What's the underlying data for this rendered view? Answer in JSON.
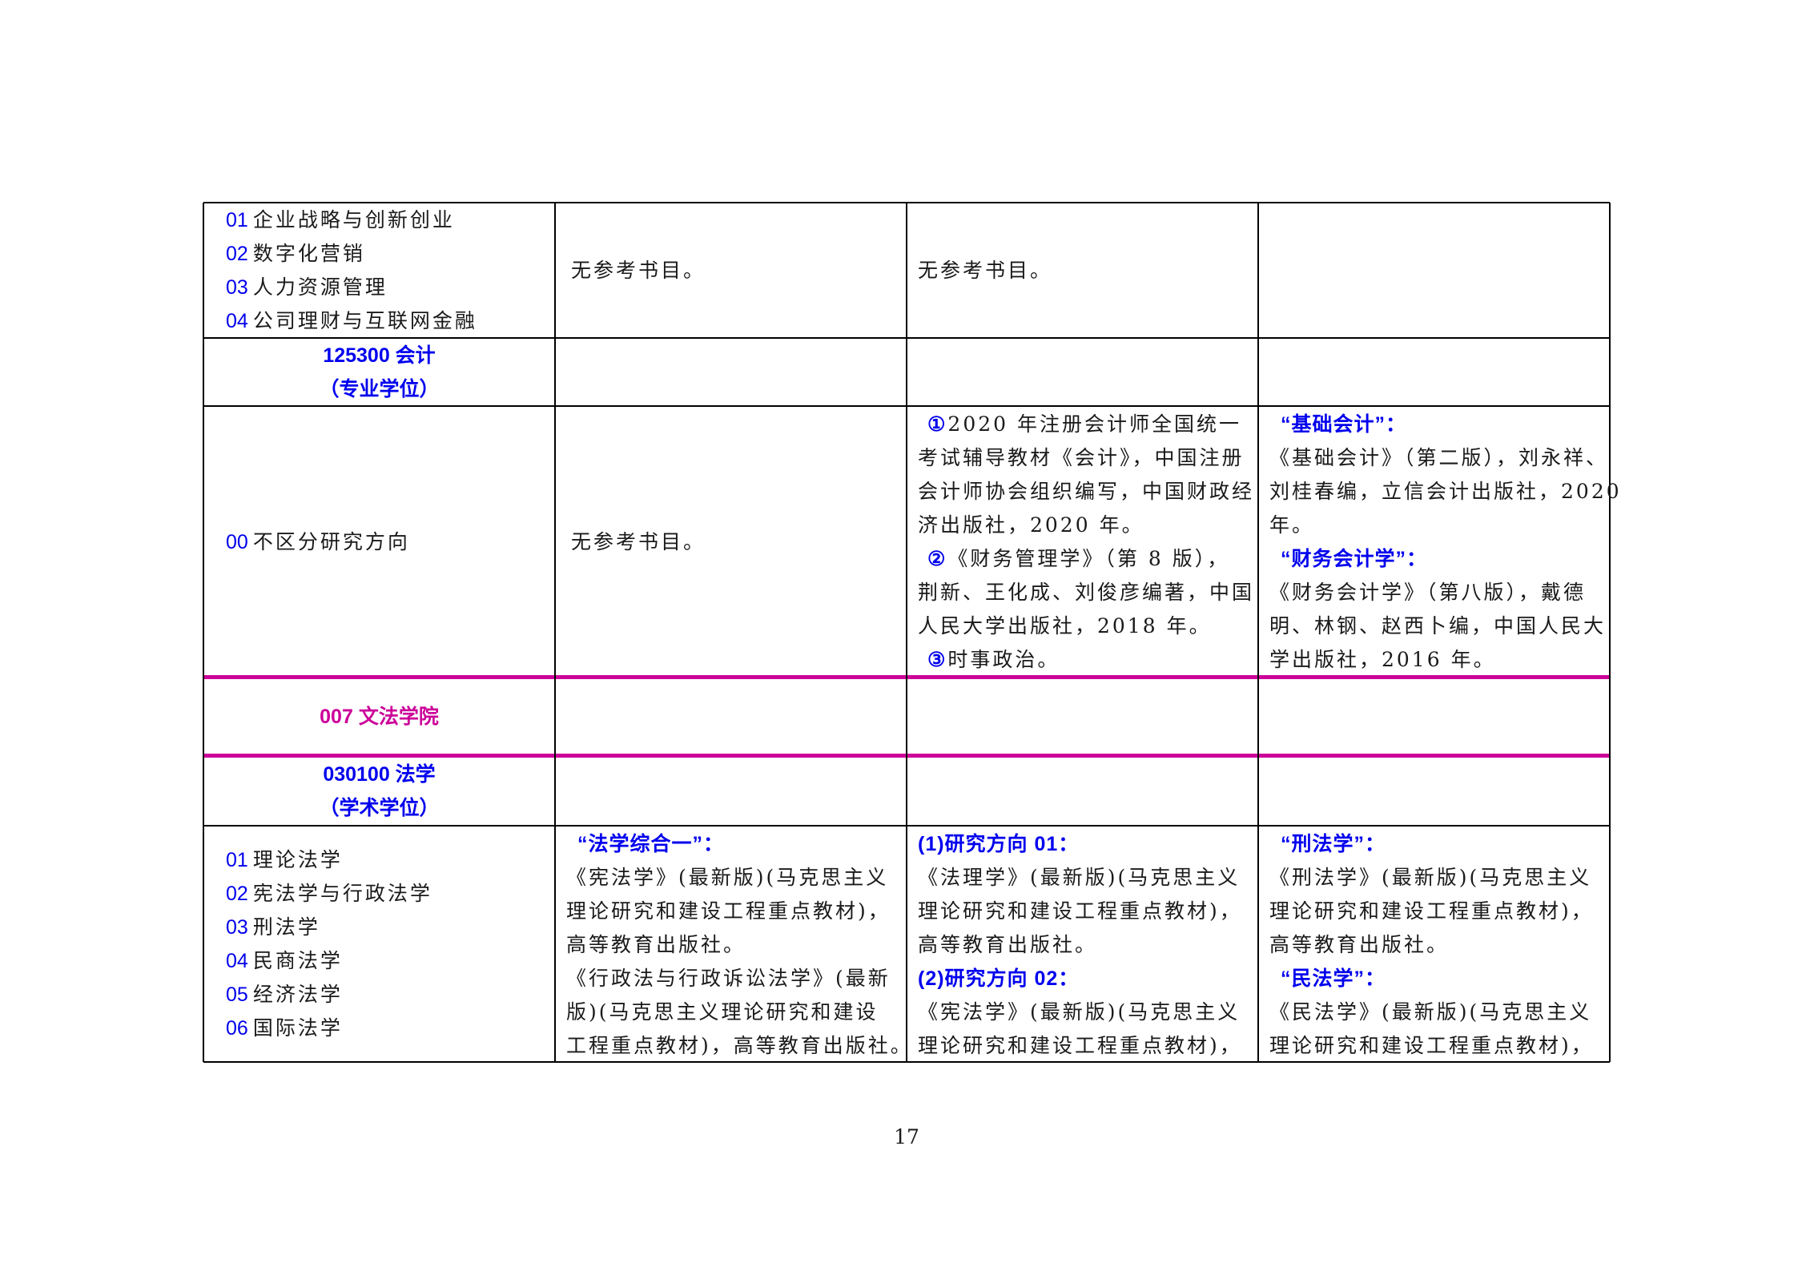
{
  "colors": {
    "accent_blue": "#0000ee",
    "section_magenta": "#cc0099"
  },
  "rows": [
    {
      "col1": {
        "items": [
          {
            "code": "01",
            "text": "企业战略与创新创业"
          },
          {
            "code": "02",
            "text": "数字化营销"
          },
          {
            "code": "03",
            "text": "人力资源管理"
          },
          {
            "code": "04",
            "text": "公司理财与互联网金融"
          }
        ]
      },
      "col2": {
        "lines": [
          {
            "text": "无参考书目。"
          }
        ]
      },
      "col3": {
        "lines": [
          {
            "text": "无参考书目。"
          }
        ]
      },
      "col4": {
        "lines": []
      }
    },
    {
      "col1": {
        "heading": [
          "125300 会计",
          "（专业学位）"
        ]
      }
    },
    {
      "col1": {
        "items": [
          {
            "code": "00",
            "text": "不区分研究方向"
          }
        ]
      },
      "col2": {
        "lines": [
          {
            "text": "无参考书目。"
          }
        ]
      },
      "col3": {
        "lines": [
          {
            "mark": "①",
            "text": "2020 年注册会计师全国统一"
          },
          {
            "text": "考试辅导教材《会计》，中国注册"
          },
          {
            "text": "会计师协会组织编写，中国财政经"
          },
          {
            "text": "济出版社，2020 年。"
          },
          {
            "mark": "②",
            "text": "《财务管理学》（第 8 版），"
          },
          {
            "text": "荆新、王化成、刘俊彦编著，中国"
          },
          {
            "text": "人民大学出版社，2018 年。"
          },
          {
            "mark": "③",
            "text": "时事政治。"
          }
        ]
      },
      "col4": {
        "lines": [
          {
            "heading": "“基础会计”："
          },
          {
            "text": "《基础会计》（第二版），刘永祥、"
          },
          {
            "text": "刘桂春编，立信会计出版社，2020"
          },
          {
            "text": "年。"
          },
          {
            "heading": "“财务会计学”："
          },
          {
            "text": "《财务会计学》（第八版），戴德"
          },
          {
            "text": "明、林钢、赵西卜编，中国人民大"
          },
          {
            "text": "学出版社，2016 年。"
          }
        ]
      }
    },
    {
      "col1": {
        "heading": [
          "007 文法学院"
        ],
        "section": true
      }
    },
    {
      "col1": {
        "heading": [
          "030100  法学",
          "（学术学位）"
        ]
      }
    },
    {
      "col1": {
        "items": [
          {
            "code": "01",
            "text": "理论法学"
          },
          {
            "code": "02",
            "text": "宪法学与行政法学"
          },
          {
            "code": "03",
            "text": "刑法学"
          },
          {
            "code": "04",
            "text": "民商法学"
          },
          {
            "code": "05",
            "text": "经济法学"
          },
          {
            "code": "06",
            "text": "国际法学"
          }
        ]
      },
      "col2": {
        "lines": [
          {
            "heading": "“法学综合一”："
          },
          {
            "text": "《宪法学》(最新版)(马克思主义"
          },
          {
            "text": "理论研究和建设工程重点教材)，"
          },
          {
            "text": "高等教育出版社。"
          },
          {
            "text": "《行政法与行政诉讼法学》(最新"
          },
          {
            "text": "版)(马克思主义理论研究和建设"
          },
          {
            "text": "工程重点教材)，高等教育出版社。"
          }
        ]
      },
      "col3": {
        "lines": [
          {
            "heading": "(1)研究方向 01："
          },
          {
            "text": "《法理学》(最新版)(马克思主义"
          },
          {
            "text": "理论研究和建设工程重点教材)，"
          },
          {
            "text": "高等教育出版社。"
          },
          {
            "heading": "(2)研究方向 02："
          },
          {
            "text": "《宪法学》(最新版)(马克思主义"
          },
          {
            "text": "理论研究和建设工程重点教材)，"
          }
        ]
      },
      "col4": {
        "lines": [
          {
            "heading": "“刑法学”："
          },
          {
            "text": "《刑法学》(最新版)(马克思主义"
          },
          {
            "text": "理论研究和建设工程重点教材)，"
          },
          {
            "text": "高等教育出版社。"
          },
          {
            "heading": "“民法学”："
          },
          {
            "text": "《民法学》(最新版)(马克思主义"
          },
          {
            "text": "理论研究和建设工程重点教材)，"
          }
        ]
      }
    }
  ],
  "page_number": "17"
}
